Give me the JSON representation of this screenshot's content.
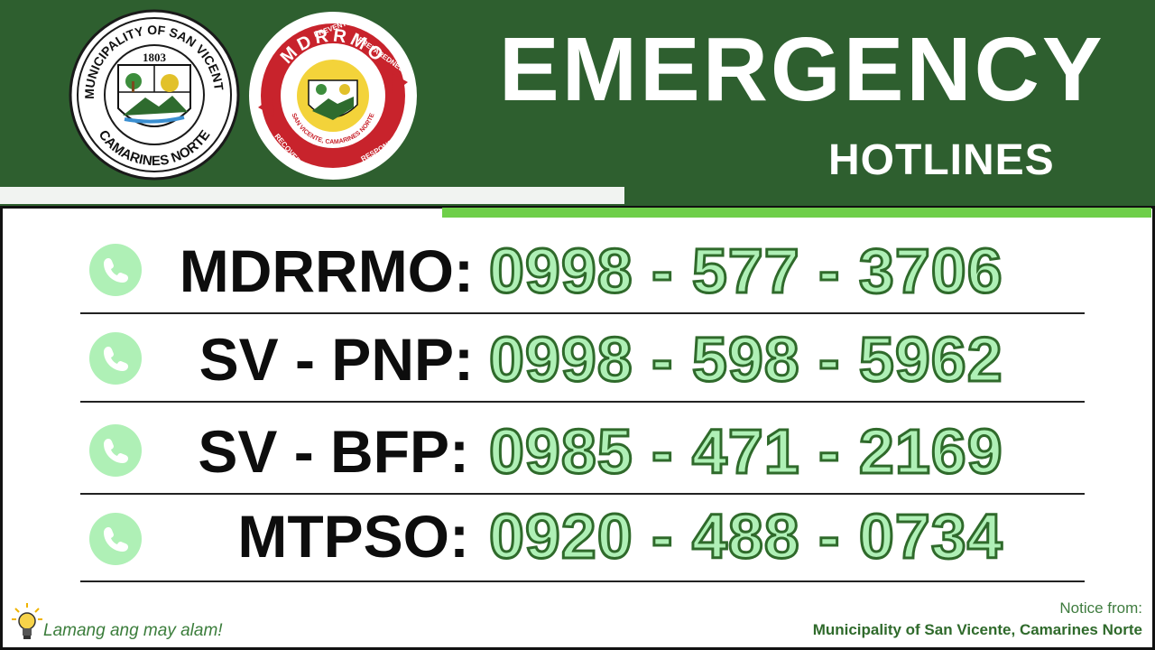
{
  "header": {
    "title": "EMERGENCY",
    "subtitle": "HOTLINES"
  },
  "seals": {
    "municipal": {
      "top_text": "MUNICIPALITY OF SAN VICENTE",
      "bottom_text": "CAMARINES NORTE",
      "year": "1803"
    },
    "mdrrmo": {
      "name": "MDRRMO",
      "ring_words": [
        "PREVENTION",
        "PREPAREDNESS",
        "RESPONSE",
        "RECOVERY"
      ],
      "inner_text": "SAN VICENTE, CAMARINES NORTE"
    }
  },
  "hotlines": [
    {
      "label": "MDRRMO:",
      "number": "0998 - 577 - 3706"
    },
    {
      "label": "SV - PNP:",
      "number": "0998 - 598 - 5962"
    },
    {
      "label": "SV - BFP:",
      "number": "0985 - 471 - 2169"
    },
    {
      "label": "MTPSO:",
      "number": "0920 - 488 - 0734"
    }
  ],
  "footer": {
    "tagline": "Lamang ang may alam!",
    "notice_label": "Notice from:",
    "notice_org": "Municipality of San Vicente, Camarines Norte"
  },
  "colors": {
    "header_green": "#2e5f2f",
    "accent_green": "#6fcf4a",
    "number_fill": "#aff0b6",
    "number_stroke": "#2f6a2b",
    "seal_red": "#c8232c"
  }
}
